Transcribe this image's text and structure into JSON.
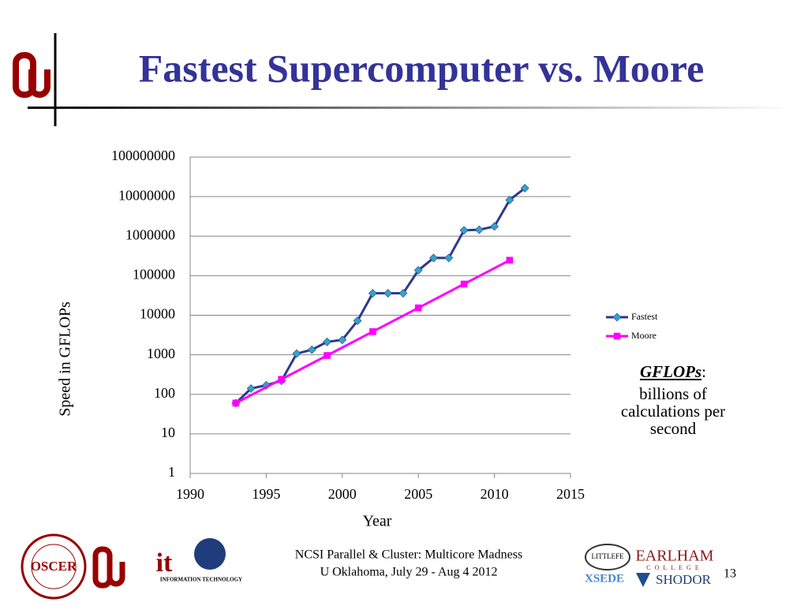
{
  "chart_data": {
    "type": "line",
    "title": "Fastest Supercomputer vs. Moore",
    "x_label": "Year",
    "y_label": "Speed  in GFLOPs",
    "log_y": true,
    "grid": true,
    "legend": "right",
    "xlim": [
      1990,
      2015
    ],
    "xticks": [
      1990,
      1995,
      2000,
      2005,
      2010,
      2015
    ],
    "ylim": [
      1,
      100000000
    ],
    "yticks": [
      1,
      10,
      100,
      1000,
      10000,
      100000,
      1000000,
      10000000,
      100000000
    ],
    "series": [
      {
        "name": "Fastest",
        "color": "#2b3990",
        "marker_color": "#31a6c4",
        "marker": "diamond",
        "x": [
          1993,
          1994,
          1995,
          1996,
          1997,
          1998,
          1999,
          2000,
          2001,
          2002,
          2003,
          2004,
          2005,
          2006,
          2007,
          2008,
          2009,
          2010,
          2011,
          2012
        ],
        "values": [
          60,
          140,
          170,
          220,
          1070,
          1340,
          2120,
          2380,
          7230,
          35900,
          35900,
          35900,
          136800,
          280600,
          280600,
          1400000,
          1450000,
          1760000,
          8200000,
          16300000
        ]
      },
      {
        "name": "Moore",
        "color": "#ff00ff",
        "marker_color": "#ff00ff",
        "marker": "square",
        "x": [
          1993,
          1996,
          1999,
          2002,
          2005,
          2008,
          2011
        ],
        "values": [
          60,
          240,
          960,
          3840,
          15360,
          61440,
          245760
        ]
      }
    ],
    "annotation": {
      "term": "GFLOPs",
      "colon": ":",
      "text": "billions of calculations per second"
    }
  },
  "footer": {
    "lines": [
      "NCSI Parallel & Cluster: Multicore Madness",
      "U Oklahoma, July 29 - Aug 4 2012"
    ],
    "page_number": "13"
  },
  "logos": {
    "oscer": "OSCER",
    "it": "it",
    "it_text": "INFORMATION TECHNOLOGY",
    "littlefe": "LITTLEFE",
    "earlham": "EARLHAM",
    "college": "COLLEGE",
    "xsede": "XSEDE",
    "shodor": "SHODOR"
  }
}
